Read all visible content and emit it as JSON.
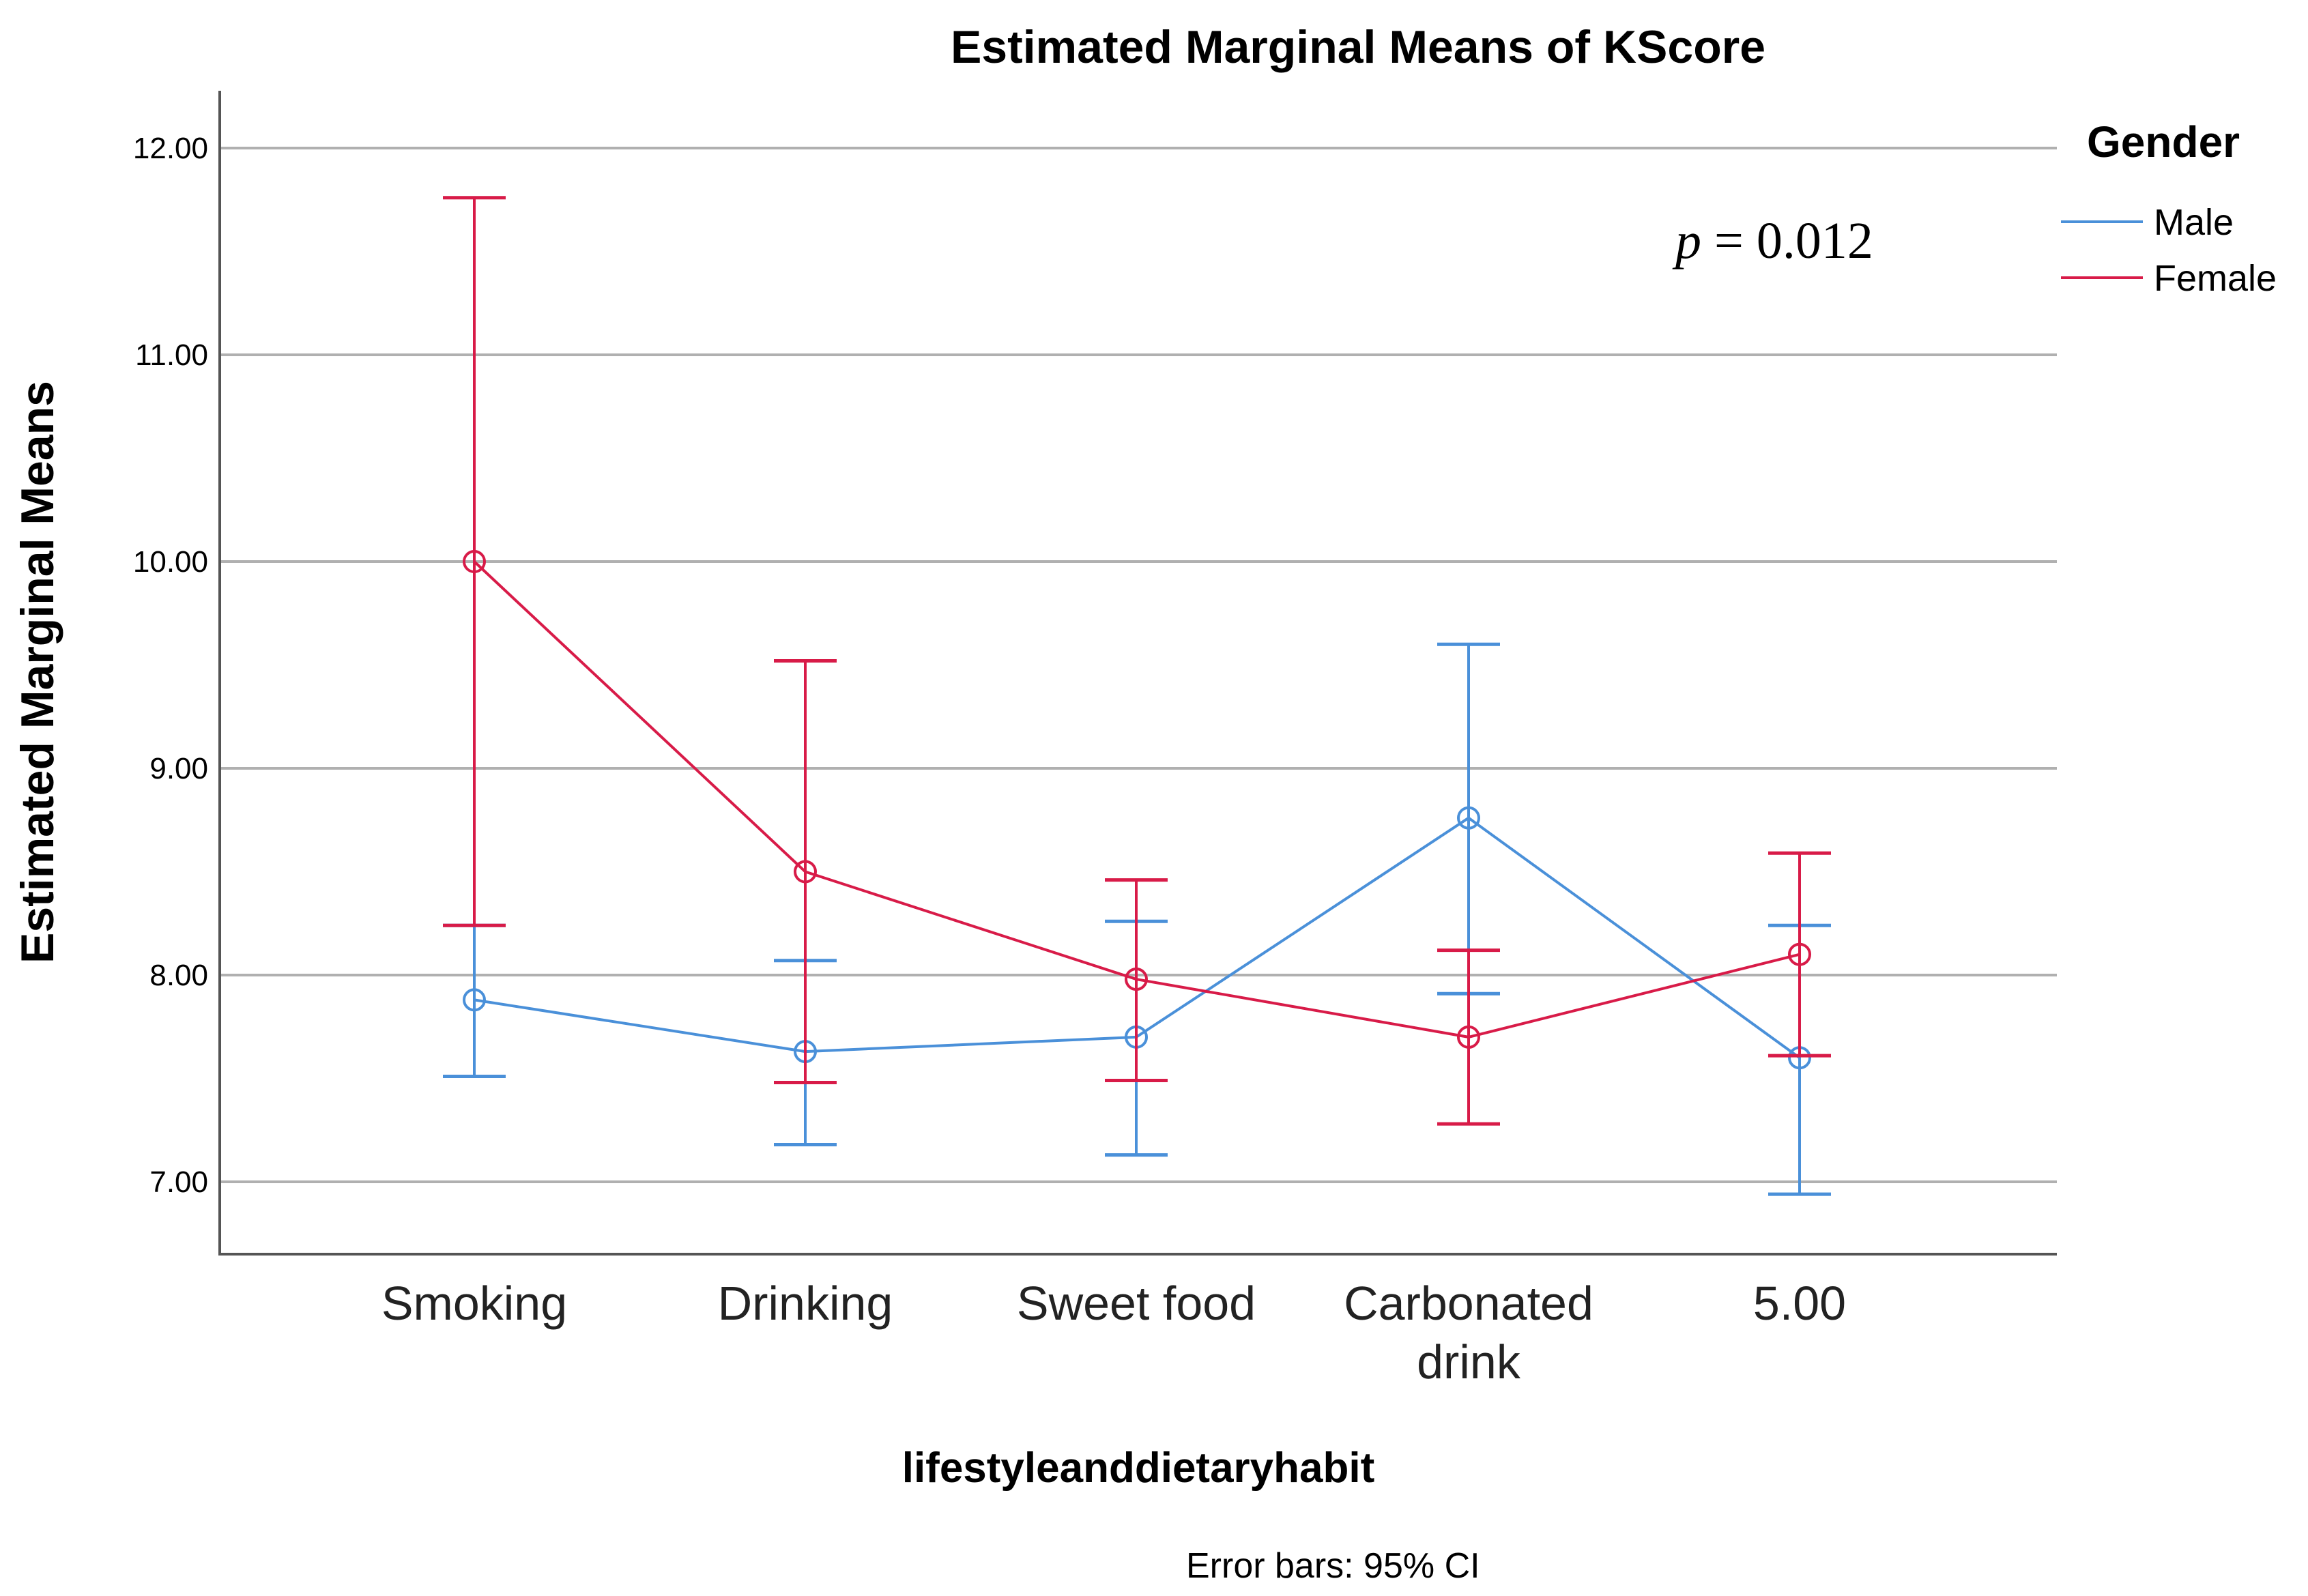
{
  "chart_data": {
    "type": "line",
    "title": "Estimated Marginal Means of KScore",
    "xlabel": "lifestyleanddietaryhabit",
    "ylabel": "Estimated Marginal Means",
    "categories": [
      "Smoking",
      "Drinking",
      "Sweet food",
      "Carbonated drink",
      "5.00"
    ],
    "category_lines": [
      [
        "Smoking"
      ],
      [
        "Drinking"
      ],
      [
        "Sweet food"
      ],
      [
        "Carbonated",
        "drink"
      ],
      [
        "5.00"
      ]
    ],
    "ylim": [
      6.65,
      12.25
    ],
    "yticks": [
      7.0,
      8.0,
      9.0,
      10.0,
      11.0,
      12.0
    ],
    "ytick_labels": [
      "7.00",
      "8.00",
      "9.00",
      "10.00",
      "11.00",
      "12.00"
    ],
    "grid": true,
    "legend": {
      "title": "Gender",
      "position": "top-right"
    },
    "series": [
      {
        "name": "Male",
        "color": "#4a90d9",
        "values": [
          7.88,
          7.63,
          7.7,
          8.76,
          7.6
        ],
        "ci_low": [
          7.51,
          7.18,
          7.13,
          7.91,
          6.94
        ],
        "ci_high": [
          8.24,
          8.07,
          8.26,
          9.6,
          8.24
        ]
      },
      {
        "name": "Female",
        "color": "#d81b48",
        "values": [
          10.0,
          8.5,
          7.98,
          7.7,
          8.1
        ],
        "ci_low": [
          8.24,
          7.48,
          7.49,
          7.28,
          7.61
        ],
        "ci_high": [
          11.76,
          9.52,
          8.46,
          8.12,
          8.59
        ]
      }
    ],
    "annotation": {
      "italic": "p",
      "rest": " = 0.012"
    },
    "note": "Error bars: 95% CI"
  }
}
